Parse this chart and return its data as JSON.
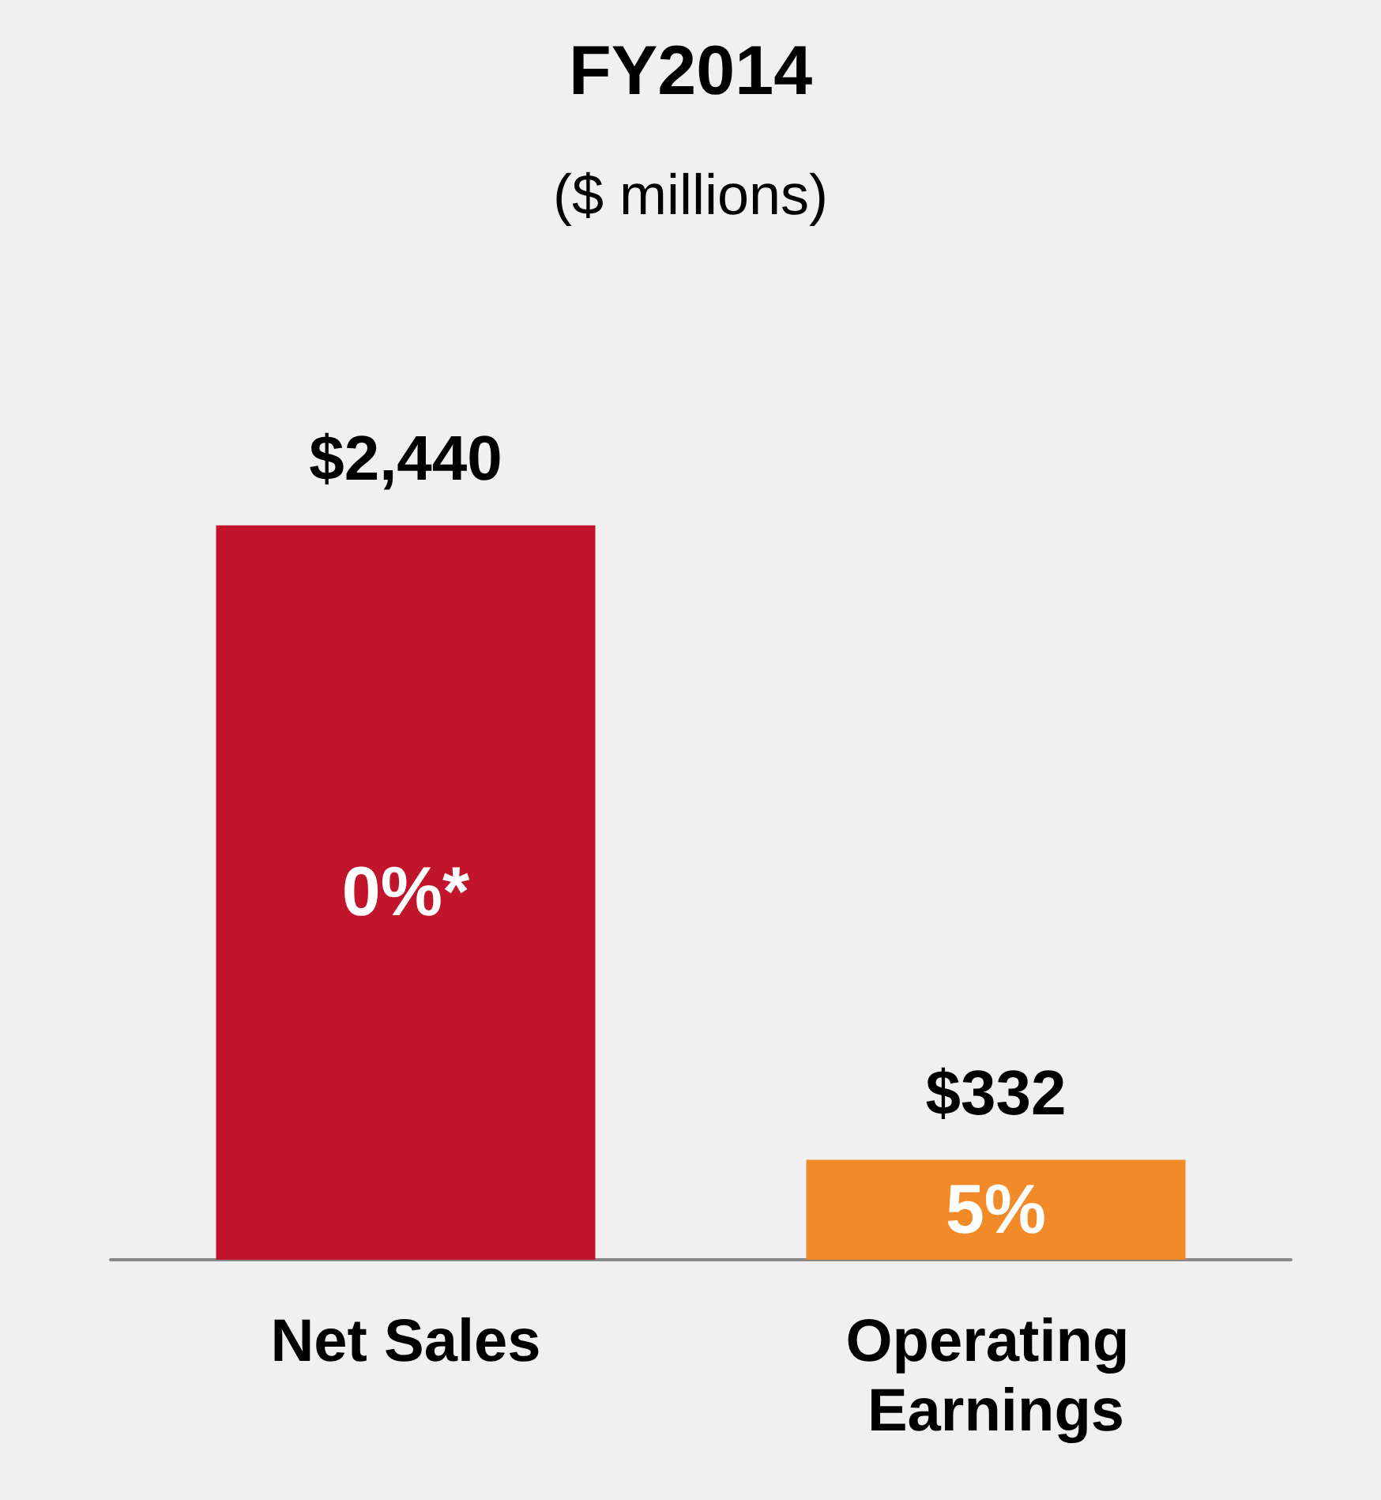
{
  "chart_data": {
    "type": "bar",
    "title": "FY2014",
    "subtitle": "($ millions)",
    "categories": [
      "Net Sales",
      "Operating Earnings"
    ],
    "values": [
      2440,
      332
    ],
    "colors": [
      "#c1152b",
      "#f28a27"
    ],
    "value_labels": [
      "$2,440",
      "$332"
    ],
    "annotations": [
      "0%*",
      "5%"
    ],
    "grid": false
  }
}
